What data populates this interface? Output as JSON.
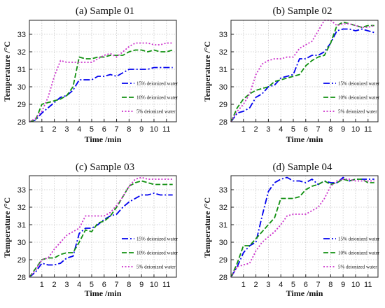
{
  "chart_data": [
    {
      "type": "line",
      "title": "(a) Sample 01",
      "xlabel": "Time /min",
      "ylabel": "Temperature /°C",
      "xlim": [
        0,
        11.8
      ],
      "ylim": [
        28,
        33.8
      ],
      "xticks": [
        1,
        2,
        3,
        4,
        5,
        6,
        7,
        8,
        9,
        10,
        11
      ],
      "yticks": [
        28,
        29,
        30,
        31,
        32,
        33
      ],
      "legend_position": "right",
      "series": [
        {
          "name": "15% deionized water",
          "color": "#0000ee",
          "dash": "dashdot",
          "x": [
            0,
            0.5,
            1,
            1.5,
            2,
            2.5,
            3,
            3.5,
            4,
            4.5,
            5,
            5.5,
            6,
            6.5,
            7,
            7.5,
            8,
            8.5,
            9,
            9.5,
            10,
            10.5,
            11,
            11.5
          ],
          "y": [
            28,
            28.1,
            28.5,
            28.8,
            29.1,
            29.4,
            29.5,
            29.8,
            30.4,
            30.4,
            30.4,
            30.6,
            30.6,
            30.7,
            30.6,
            30.8,
            31.0,
            31.0,
            31.0,
            31.0,
            31.1,
            31.1,
            31.1,
            31.1
          ]
        },
        {
          "name": "10% deionized water",
          "color": "#109010",
          "dash": "dashed",
          "x": [
            0,
            0.5,
            1,
            1.5,
            2,
            2.5,
            3,
            3.5,
            4,
            4.5,
            5,
            5.5,
            6,
            6.5,
            7,
            7.5,
            8,
            8.5,
            9,
            9.5,
            10,
            10.5,
            11,
            11.5
          ],
          "y": [
            28,
            28.1,
            29.0,
            29.1,
            29.2,
            29.3,
            29.5,
            30.0,
            31.7,
            31.6,
            31.6,
            31.7,
            31.7,
            31.8,
            31.8,
            31.8,
            32.0,
            32.1,
            32.1,
            32.0,
            32.1,
            32.0,
            32.0,
            32.1
          ]
        },
        {
          "name": "5% deionized water",
          "color": "#cc33cc",
          "dash": "dotted",
          "x": [
            0,
            0.5,
            1,
            1.5,
            2,
            2.5,
            3,
            3.5,
            4,
            4.5,
            5,
            5.5,
            6,
            6.5,
            7,
            7.5,
            8,
            8.5,
            9,
            9.5,
            10,
            10.5,
            11,
            11.5
          ],
          "y": [
            28,
            28.2,
            28.6,
            29.4,
            30.6,
            31.5,
            31.4,
            31.4,
            31.4,
            31.4,
            31.4,
            31.6,
            31.8,
            31.9,
            31.7,
            32.0,
            32.3,
            32.5,
            32.5,
            32.5,
            32.4,
            32.4,
            32.5,
            32.5
          ]
        }
      ]
    },
    {
      "type": "line",
      "title": "(b) Sample 02",
      "xlabel": "Time /min",
      "ylabel": "Temperature /°C",
      "xlim": [
        0,
        11.8
      ],
      "ylim": [
        28,
        33.8
      ],
      "xticks": [
        1,
        2,
        3,
        4,
        5,
        6,
        7,
        8,
        9,
        10,
        11
      ],
      "yticks": [
        28,
        29,
        30,
        31,
        32,
        33
      ],
      "legend_position": "right",
      "series": [
        {
          "name": "15% deionized water",
          "color": "#0000ee",
          "dash": "dashdot",
          "x": [
            0,
            0.5,
            1,
            1.5,
            2,
            2.5,
            3,
            3.5,
            4,
            4.5,
            5,
            5.5,
            6,
            6.5,
            7,
            7.5,
            8,
            8.5,
            9,
            9.5,
            10,
            10.5,
            11,
            11.5
          ],
          "y": [
            28,
            28.5,
            28.6,
            28.8,
            29.4,
            29.6,
            30.0,
            30.1,
            30.5,
            30.6,
            30.7,
            31.6,
            31.6,
            31.8,
            31.8,
            32.0,
            32.5,
            33.2,
            33.3,
            33.3,
            33.2,
            33.3,
            33.2,
            33.1
          ]
        },
        {
          "name": "10% deionized water",
          "color": "#109010",
          "dash": "dashed",
          "x": [
            0,
            0.5,
            1,
            1.5,
            2,
            2.5,
            3,
            3.5,
            4,
            4.5,
            5,
            5.5,
            6,
            6.5,
            7,
            7.5,
            8,
            8.5,
            9,
            9.5,
            10,
            10.5,
            11,
            11.5
          ],
          "y": [
            28,
            28.8,
            29.3,
            29.6,
            29.8,
            29.9,
            30.0,
            30.3,
            30.4,
            30.5,
            30.6,
            30.7,
            31.2,
            31.5,
            31.7,
            31.8,
            32.5,
            33.5,
            33.7,
            33.6,
            33.5,
            33.4,
            33.5,
            33.5
          ]
        },
        {
          "name": "5% deionized water",
          "color": "#cc33cc",
          "dash": "dotted",
          "x": [
            0,
            0.5,
            1,
            1.5,
            2,
            2.5,
            3,
            3.5,
            4,
            4.5,
            5,
            5.5,
            6,
            6.5,
            7,
            7.5,
            8,
            8.5,
            9,
            9.5,
            10,
            10.5,
            11,
            11.5
          ],
          "y": [
            28,
            28.6,
            29.0,
            29.6,
            30.7,
            31.3,
            31.5,
            31.6,
            31.6,
            31.7,
            31.7,
            32.2,
            32.4,
            32.6,
            33.2,
            33.8,
            33.8,
            33.5,
            33.6,
            33.6,
            33.5,
            33.4,
            33.4,
            33.5
          ]
        }
      ]
    },
    {
      "type": "line",
      "title": "(c) Sample 03",
      "xlabel": "Time /min",
      "ylabel": "Temperature /°C",
      "xlim": [
        0,
        11.8
      ],
      "ylim": [
        28,
        33.8
      ],
      "xticks": [
        1,
        2,
        3,
        4,
        5,
        6,
        7,
        8,
        9,
        10,
        11
      ],
      "yticks": [
        28,
        29,
        30,
        31,
        32,
        33
      ],
      "legend_position": "right",
      "series": [
        {
          "name": "15% deionized water",
          "color": "#0000ee",
          "dash": "dashdot",
          "x": [
            0,
            0.5,
            1,
            1.5,
            2,
            2.5,
            3,
            3.5,
            4,
            4.5,
            5,
            5.5,
            6,
            6.5,
            7,
            7.5,
            8,
            8.5,
            9,
            9.5,
            10,
            10.5,
            11,
            11.5
          ],
          "y": [
            28,
            28.3,
            28.8,
            28.7,
            28.7,
            28.8,
            29.1,
            29.2,
            30.5,
            30.8,
            30.8,
            31.0,
            31.3,
            31.5,
            31.6,
            32.0,
            32.3,
            32.5,
            32.7,
            32.7,
            32.8,
            32.7,
            32.7,
            32.7
          ]
        },
        {
          "name": "10% deionized water",
          "color": "#109010",
          "dash": "dashed",
          "x": [
            0,
            0.5,
            1,
            1.5,
            2,
            2.5,
            3,
            3.5,
            4,
            4.5,
            5,
            5.5,
            6,
            6.5,
            7,
            7.5,
            8,
            8.5,
            9,
            9.5,
            10,
            10.5,
            11,
            11.5
          ],
          "y": [
            28,
            28.5,
            29.0,
            29.1,
            29.1,
            29.3,
            29.4,
            29.4,
            30.0,
            30.7,
            30.6,
            31.1,
            31.2,
            31.5,
            32.0,
            32.6,
            33.2,
            33.4,
            33.5,
            33.4,
            33.3,
            33.3,
            33.3,
            33.3
          ]
        },
        {
          "name": "5% deionized water",
          "color": "#cc33cc",
          "dash": "dotted",
          "x": [
            0,
            0.5,
            1,
            1.5,
            2,
            2.5,
            3,
            3.5,
            4,
            4.5,
            5,
            5.5,
            6,
            6.5,
            7,
            7.5,
            8,
            8.5,
            9,
            9.5,
            10,
            10.5,
            11,
            11.5
          ],
          "y": [
            28,
            28.4,
            29.0,
            29.1,
            29.6,
            30.0,
            30.4,
            30.6,
            30.8,
            31.5,
            31.5,
            31.5,
            31.5,
            31.7,
            32.1,
            32.6,
            33.2,
            33.6,
            33.7,
            33.6,
            33.6,
            33.6,
            33.6,
            33.6
          ]
        }
      ]
    },
    {
      "type": "line",
      "title": "(d) Sample 04",
      "xlabel": "Time /min",
      "ylabel": "Temperature /°C",
      "xlim": [
        0,
        11.8
      ],
      "ylim": [
        28,
        33.8
      ],
      "xticks": [
        1,
        2,
        3,
        4,
        5,
        6,
        7,
        8,
        9,
        10,
        11
      ],
      "yticks": [
        28,
        29,
        30,
        31,
        32,
        33
      ],
      "legend_position": "right",
      "series": [
        {
          "name": "15% deionized water",
          "color": "#0000ee",
          "dash": "dashdot",
          "x": [
            0,
            0.5,
            1,
            1.5,
            2,
            2.5,
            3,
            3.5,
            4,
            4.5,
            5,
            5.5,
            6,
            6.5,
            7,
            7.5,
            8,
            8.5,
            9,
            9.5,
            10,
            10.5,
            11,
            11.5
          ],
          "y": [
            28,
            28.6,
            29.4,
            29.8,
            30.0,
            31.5,
            32.9,
            33.4,
            33.6,
            33.7,
            33.5,
            33.5,
            33.4,
            33.6,
            33.3,
            33.5,
            33.4,
            33.4,
            33.7,
            33.5,
            33.6,
            33.6,
            33.6,
            33.6
          ]
        },
        {
          "name": "10% deionized water",
          "color": "#109010",
          "dash": "dashed",
          "x": [
            0,
            0.5,
            1,
            1.5,
            2,
            2.5,
            3,
            3.5,
            4,
            4.5,
            5,
            5.5,
            6,
            6.5,
            7,
            7.5,
            8,
            8.5,
            9,
            9.5,
            10,
            10.5,
            11,
            11.5
          ],
          "y": [
            28,
            28.8,
            29.8,
            29.8,
            30.2,
            30.6,
            31.0,
            31.4,
            32.5,
            32.5,
            32.5,
            32.6,
            33.0,
            33.2,
            33.3,
            33.5,
            33.3,
            33.4,
            33.6,
            33.5,
            33.6,
            33.6,
            33.4,
            33.4
          ]
        },
        {
          "name": "5% deionized water",
          "color": "#cc33cc",
          "dash": "dotted",
          "x": [
            0,
            0.5,
            1,
            1.5,
            2,
            2.5,
            3,
            3.5,
            4,
            4.5,
            5,
            5.5,
            6,
            6.5,
            7,
            7.5,
            8,
            8.5,
            9,
            9.5,
            10,
            10.5,
            11,
            11.5
          ],
          "y": [
            28,
            28.6,
            28.7,
            28.8,
            29.5,
            30.0,
            30.3,
            30.6,
            31.0,
            31.5,
            31.6,
            31.6,
            31.6,
            31.8,
            32.0,
            32.5,
            33.2,
            33.5,
            33.6,
            33.6,
            33.5,
            33.5,
            33.5,
            33.5
          ]
        }
      ]
    }
  ]
}
